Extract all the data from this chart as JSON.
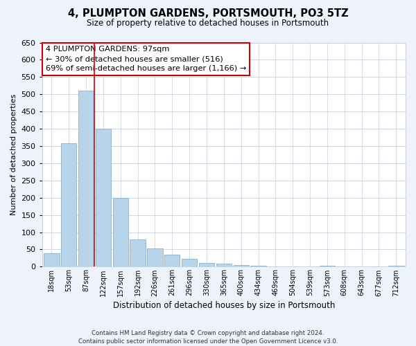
{
  "title": "4, PLUMPTON GARDENS, PORTSMOUTH, PO3 5TZ",
  "subtitle": "Size of property relative to detached houses in Portsmouth",
  "xlabel": "Distribution of detached houses by size in Portsmouth",
  "ylabel": "Number of detached properties",
  "bar_labels": [
    "18sqm",
    "53sqm",
    "87sqm",
    "122sqm",
    "157sqm",
    "192sqm",
    "226sqm",
    "261sqm",
    "296sqm",
    "330sqm",
    "365sqm",
    "400sqm",
    "434sqm",
    "469sqm",
    "504sqm",
    "539sqm",
    "573sqm",
    "608sqm",
    "643sqm",
    "677sqm",
    "712sqm"
  ],
  "bar_values": [
    38,
    358,
    510,
    400,
    200,
    80,
    53,
    35,
    23,
    10,
    8,
    5,
    2,
    0,
    0,
    0,
    2,
    0,
    0,
    0,
    2
  ],
  "bar_color": "#b8d4ea",
  "bar_edge_color": "#8ab0cc",
  "ylim": [
    0,
    650
  ],
  "yticks": [
    0,
    50,
    100,
    150,
    200,
    250,
    300,
    350,
    400,
    450,
    500,
    550,
    600,
    650
  ],
  "vline_x": 2.48,
  "vline_color": "#cc0000",
  "annotation_lines": [
    "4 PLUMPTON GARDENS: 97sqm",
    "← 30% of detached houses are smaller (516)",
    "69% of semi-detached houses are larger (1,166) →"
  ],
  "annotation_box_color": "#ffffff",
  "annotation_box_edge_color": "#cc0000",
  "footer_lines": [
    "Contains HM Land Registry data © Crown copyright and database right 2024.",
    "Contains public sector information licensed under the Open Government Licence v3.0."
  ],
  "bg_color": "#eef2fa",
  "plot_bg_color": "#ffffff",
  "grid_color": "#c8d0e0"
}
